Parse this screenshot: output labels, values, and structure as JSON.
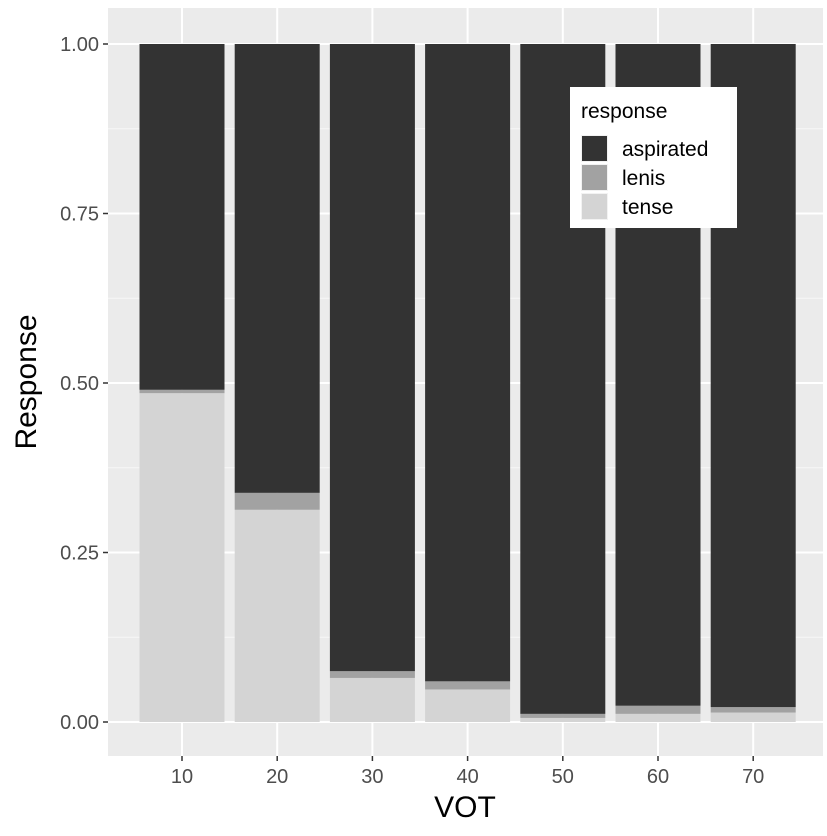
{
  "chart_data": {
    "type": "bar",
    "stacked": true,
    "normalized": true,
    "xlabel": "VOT",
    "ylabel": "Response",
    "categories": [
      "10",
      "20",
      "30",
      "40",
      "50",
      "60",
      "70"
    ],
    "ylim": [
      0,
      1
    ],
    "yticks": [
      "0.00",
      "0.25",
      "0.50",
      "0.75",
      "1.00"
    ],
    "grid": true,
    "legend_position": "top-right",
    "legend": {
      "title": "response",
      "entries": [
        "aspirated",
        "lenis",
        "tense"
      ]
    },
    "series": [
      {
        "name": "tense",
        "color": "#d4d4d4",
        "values": [
          0.485,
          0.313,
          0.065,
          0.048,
          0.006,
          0.012,
          0.014
        ]
      },
      {
        "name": "lenis",
        "color": "#a2a2a2",
        "values": [
          0.005,
          0.025,
          0.01,
          0.012,
          0.006,
          0.012,
          0.008
        ]
      },
      {
        "name": "aspirated",
        "color": "#333333",
        "values": [
          0.51,
          0.662,
          0.925,
          0.94,
          0.988,
          0.976,
          0.978
        ]
      }
    ]
  }
}
